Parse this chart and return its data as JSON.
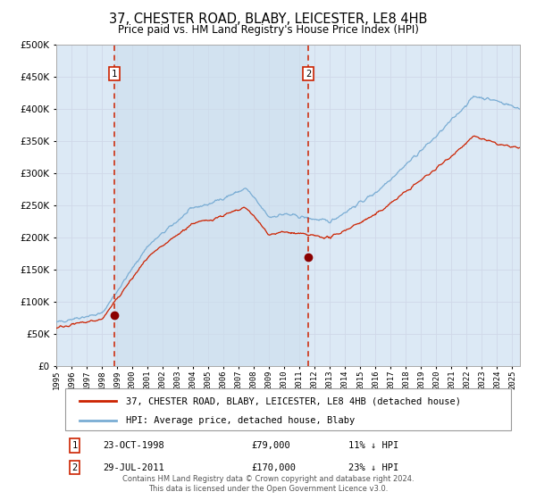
{
  "title": "37, CHESTER ROAD, BLABY, LEICESTER, LE8 4HB",
  "subtitle": "Price paid vs. HM Land Registry's House Price Index (HPI)",
  "title_fontsize": 10.5,
  "subtitle_fontsize": 8.5,
  "background_color": "#ffffff",
  "plot_bg_color": "#dce9f5",
  "grid_color": "#cccccc",
  "sale1_date_num": 1998.81,
  "sale1_price": 79000,
  "sale2_date_num": 2011.57,
  "sale2_price": 170000,
  "sale1_label": "1",
  "sale2_label": "2",
  "sale1_info": "23-OCT-1998",
  "sale1_amount": "£79,000",
  "sale1_hpi": "11% ↓ HPI",
  "sale2_info": "29-JUL-2011",
  "sale2_amount": "£170,000",
  "sale2_hpi": "23% ↓ HPI",
  "legend_line1": "37, CHESTER ROAD, BLABY, LEICESTER, LE8 4HB (detached house)",
  "legend_line2": "HPI: Average price, detached house, Blaby",
  "footer": "Contains HM Land Registry data © Crown copyright and database right 2024.\nThis data is licensed under the Open Government Licence v3.0.",
  "hpi_color": "#7aadd4",
  "price_color": "#cc2200",
  "marker_color": "#8b0000",
  "dashed_line_color": "#cc2200",
  "ylim_max": 500000,
  "ylim_min": 0,
  "xmin": 1995,
  "xmax": 2025.5
}
